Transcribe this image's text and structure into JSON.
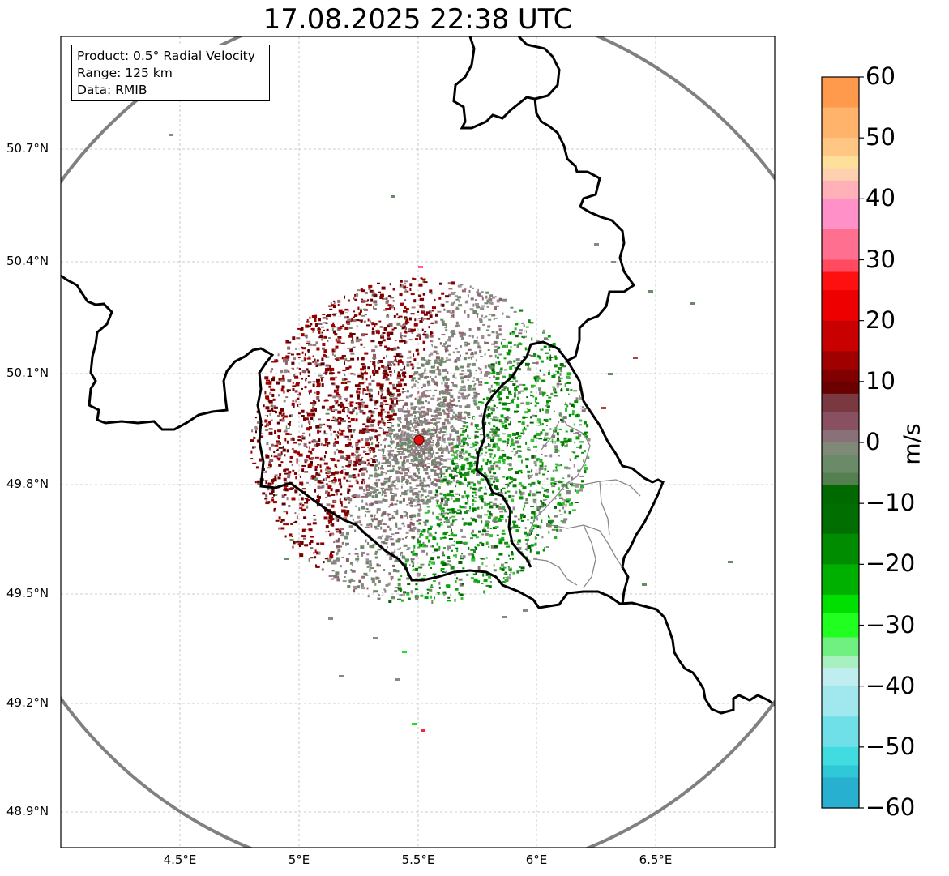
{
  "title": "17.08.2025 22:38 UTC",
  "info": {
    "product": "Product: 0.5° Radial Velocity",
    "range": "Range: 125 km",
    "data_source": "Data: RMIB"
  },
  "axes": {
    "lat_labels": [
      "50.7°N",
      "50.4°N",
      "50.1°N",
      "49.8°N",
      "49.5°N",
      "49.2°N",
      "48.9°N"
    ],
    "lon_labels": [
      "4.5°E",
      "5°E",
      "5.5°E",
      "6°E",
      "6.5°E"
    ],
    "grid": "dashed"
  },
  "map": {
    "radar_site": {
      "lat": 49.91,
      "lon": 5.505
    },
    "range_ring_km": 125,
    "colors": {
      "border": "#000000",
      "ring": "#808080",
      "site": "#e01010",
      "inner_border": "#888888"
    }
  },
  "colorbar": {
    "unit": "m/s",
    "min": -60,
    "max": 60,
    "tick_values": [
      60,
      50,
      40,
      30,
      20,
      10,
      0,
      -10,
      -20,
      -30,
      -40,
      -50,
      -60
    ],
    "tick_labels": [
      "60",
      "50",
      "40",
      "30",
      "20",
      "10",
      "0",
      "−10",
      "−20",
      "−30",
      "−40",
      "−50",
      "−60"
    ]
  }
}
